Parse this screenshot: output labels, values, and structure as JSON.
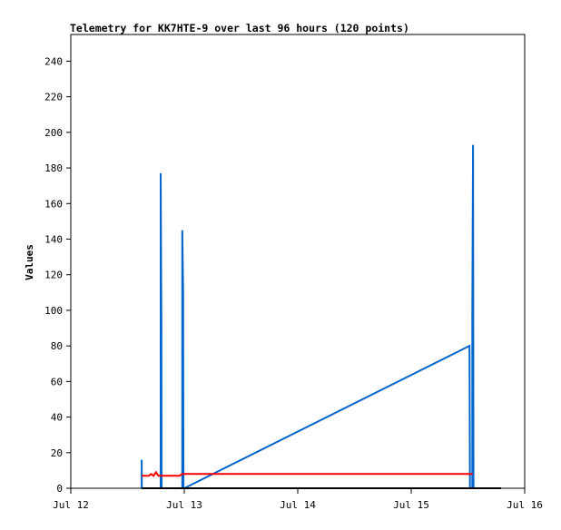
{
  "chart_data": {
    "type": "line",
    "title": "Telemetry for KK7HTE-9 over last 96 hours (120 points)",
    "xlabel": "",
    "ylabel": "Values",
    "xlim": [
      "Jul 12 00:00",
      "Jul 16 00:00"
    ],
    "ylim": [
      0,
      255
    ],
    "x_ticks": [
      "Jul 12",
      "Jul 13",
      "Jul 14",
      "Jul 15",
      "Jul 16"
    ],
    "y_ticks": [
      0,
      20,
      40,
      60,
      80,
      100,
      120,
      140,
      160,
      180,
      200,
      220,
      240
    ],
    "grid": false,
    "legend": "none",
    "series": [
      {
        "color": "#0066cc",
        "points": [
          [
            "Jul 12 15:00",
            0
          ],
          [
            "Jul 12 15:00",
            16
          ],
          [
            "Jul 12 15:01",
            0
          ],
          [
            "Jul 12 19:00",
            0
          ],
          [
            "Jul 12 19:00",
            177
          ],
          [
            "Jul 12 19:10",
            88
          ],
          [
            "Jul 12 19:12",
            0
          ],
          [
            "Jul 12 23:35",
            0
          ],
          [
            "Jul 12 23:35",
            145
          ],
          [
            "Jul 12 23:45",
            112
          ],
          [
            "Jul 12 23:50",
            0
          ],
          [
            "Jul 13 00:00",
            0
          ],
          [
            "Jul 15 12:20",
            80
          ],
          [
            "Jul 15 12:25",
            0
          ],
          [
            "Jul 15 12:55",
            0
          ],
          [
            "Jul 15 12:55",
            97
          ],
          [
            "Jul 15 13:05",
            193
          ],
          [
            "Jul 15 13:10",
            0
          ]
        ]
      },
      {
        "color": "#ff0000",
        "points": [
          [
            "Jul 12 15:00",
            7
          ],
          [
            "Jul 12 16:30",
            7
          ],
          [
            "Jul 12 17:00",
            8
          ],
          [
            "Jul 12 17:30",
            7
          ],
          [
            "Jul 12 18:00",
            9
          ],
          [
            "Jul 12 18:30",
            7
          ],
          [
            "Jul 12 23:00",
            7
          ],
          [
            "Jul 12 23:30",
            8
          ],
          [
            "Jul 13 00:00",
            8
          ],
          [
            "Jul 15 13:00",
            8
          ]
        ]
      },
      {
        "color": "#000000",
        "points": [
          [
            "Jul 12 15:00",
            0
          ],
          [
            "Jul 15 19:00",
            0
          ]
        ]
      }
    ]
  }
}
